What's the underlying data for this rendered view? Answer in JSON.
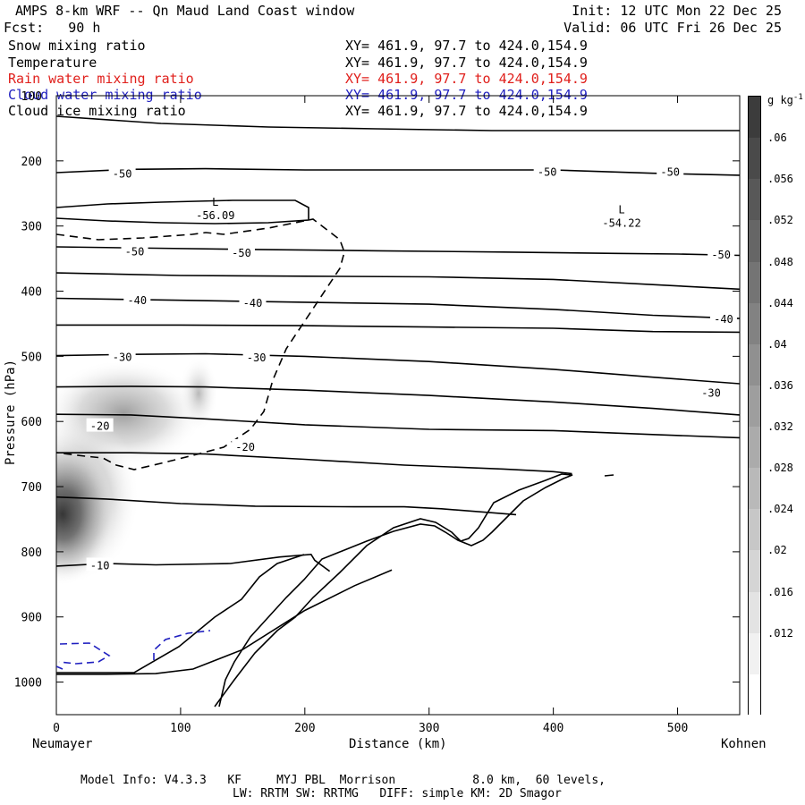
{
  "header": {
    "title": "AMPS 8-km WRF -- Qn Maud Land Coast window",
    "forecast": "Fcst:   90 h",
    "init": "Init: 12 UTC Mon 22 Dec 25",
    "valid": "Valid: 06 UTC Fri 26 Dec 25"
  },
  "legend": [
    {
      "name": "Snow mixing ratio",
      "xy": "XY= 461.9, 97.7 to 424.0,154.9",
      "color": "#000000"
    },
    {
      "name": "Temperature",
      "xy": "XY= 461.9, 97.7 to 424.0,154.9",
      "color": "#000000"
    },
    {
      "name": "Rain water mixing ratio",
      "xy": "XY= 461.9, 97.7 to 424.0,154.9",
      "color": "#e0201c"
    },
    {
      "name": "Cloud water mixing ratio",
      "xy": "XY= 461.9, 97.7 to 424.0,154.9",
      "color": "#2020c0"
    },
    {
      "name": "Cloud ice mixing ratio",
      "xy": "XY= 461.9, 97.7 to 424.0,154.9",
      "color": "#000000"
    }
  ],
  "footer": {
    "line1": "Model Info: V4.3.3   KF     MYJ PBL  Morrison           8.0 km,  60 levels,",
    "line2": "LW: RRTM SW: RRTMG   DIFF: simple KM: 2D Smagor"
  },
  "chart_data": {
    "type": "contour",
    "xlabel": "Distance (km)",
    "ylabel": "Pressure (hPa)",
    "xlim": [
      0,
      550
    ],
    "ylim": [
      1050,
      100
    ],
    "x_ticks": [
      0,
      100,
      200,
      300,
      400,
      500
    ],
    "y_ticks": [
      100,
      200,
      300,
      400,
      500,
      600,
      700,
      800,
      900,
      1000
    ],
    "left_endpoint": "Neumayer",
    "right_endpoint": "Kohnen",
    "colorbar": {
      "unit": "g kg",
      "unit_exp": "-1",
      "levels": [
        ".06",
        ".056",
        ".052",
        ".048",
        ".044",
        ".04",
        ".036",
        ".032",
        ".028",
        ".024",
        ".02",
        ".016",
        ".012"
      ]
    },
    "temperature_contours": [
      {
        "level": -50,
        "points": [
          [
            0,
            218
          ],
          [
            60,
            213
          ],
          [
            120,
            212
          ],
          [
            200,
            214
          ],
          [
            300,
            214
          ],
          [
            400,
            214
          ],
          [
            480,
            219
          ],
          [
            550,
            222
          ]
        ]
      },
      {
        "level": -50,
        "points": [
          [
            0,
            332
          ],
          [
            80,
            334
          ],
          [
            160,
            336
          ],
          [
            260,
            338
          ],
          [
            360,
            340
          ],
          [
            450,
            342
          ],
          [
            500,
            343
          ],
          [
            550,
            345
          ]
        ]
      },
      {
        "level": -40,
        "points": [
          [
            0,
            372
          ],
          [
            100,
            376
          ],
          [
            200,
            377
          ],
          [
            300,
            378
          ],
          [
            400,
            382
          ],
          [
            480,
            390
          ],
          [
            550,
            397
          ]
        ]
      },
      {
        "level": -40,
        "points": [
          [
            0,
            411
          ],
          [
            100,
            414
          ],
          [
            200,
            417
          ],
          [
            300,
            420
          ],
          [
            400,
            428
          ],
          [
            480,
            437
          ],
          [
            550,
            442
          ]
        ]
      },
      {
        "level": -40,
        "points": [
          [
            0,
            452
          ],
          [
            100,
            452
          ],
          [
            200,
            453
          ],
          [
            300,
            455
          ],
          [
            400,
            457
          ],
          [
            480,
            462
          ],
          [
            550,
            463
          ]
        ]
      },
      {
        "level": -30,
        "points": [
          [
            0,
            499
          ],
          [
            60,
            497
          ],
          [
            120,
            496
          ],
          [
            200,
            500
          ],
          [
            300,
            508
          ],
          [
            400,
            520
          ],
          [
            480,
            532
          ],
          [
            550,
            542
          ]
        ]
      },
      {
        "level": -30,
        "points": [
          [
            0,
            547
          ],
          [
            60,
            546
          ],
          [
            120,
            547
          ],
          [
            200,
            552
          ],
          [
            300,
            560
          ],
          [
            400,
            570
          ],
          [
            480,
            580
          ],
          [
            550,
            590
          ]
        ]
      },
      {
        "level": -20,
        "points": [
          [
            0,
            589
          ],
          [
            60,
            590
          ],
          [
            120,
            596
          ],
          [
            200,
            605
          ],
          [
            300,
            612
          ],
          [
            400,
            614
          ],
          [
            480,
            620
          ],
          [
            550,
            625
          ]
        ]
      },
      {
        "level": -20,
        "points": [
          [
            0,
            648
          ],
          [
            60,
            648
          ],
          [
            120,
            650
          ],
          [
            200,
            658
          ],
          [
            280,
            667
          ],
          [
            360,
            673
          ],
          [
            400,
            677
          ],
          [
            415,
            680
          ]
        ]
      },
      {
        "level": -10,
        "points": [
          [
            0,
            716
          ],
          [
            40,
            719
          ],
          [
            100,
            726
          ],
          [
            160,
            730
          ],
          [
            240,
            731
          ],
          [
            280,
            731
          ],
          [
            310,
            734
          ],
          [
            350,
            740
          ],
          [
            370,
            743
          ]
        ]
      },
      {
        "level": -10,
        "points": [
          [
            0,
            822
          ],
          [
            40,
            818
          ],
          [
            80,
            820
          ],
          [
            140,
            818
          ],
          [
            180,
            808
          ],
          [
            205,
            804
          ],
          [
            208,
            813
          ],
          [
            220,
            830
          ]
        ]
      },
      {
        "level": -10,
        "points": [
          [
            0,
            988
          ],
          [
            40,
            988
          ],
          [
            80,
            987
          ],
          [
            110,
            980
          ],
          [
            150,
            950
          ],
          [
            200,
            890
          ],
          [
            240,
            852
          ],
          [
            270,
            828
          ]
        ]
      }
    ],
    "temperature_labels": [
      {
        "value": "-50",
        "x": 53,
        "p": 219
      },
      {
        "value": "-50",
        "x": 395,
        "p": 216
      },
      {
        "value": "-50",
        "x": 494,
        "p": 216
      },
      {
        "value": "-50",
        "x": 63,
        "p": 338
      },
      {
        "value": "-50",
        "x": 149,
        "p": 340
      },
      {
        "value": "-50",
        "x": 535,
        "p": 343
      },
      {
        "value": "-40",
        "x": 65,
        "p": 413
      },
      {
        "value": "-40",
        "x": 158,
        "p": 417
      },
      {
        "value": "-40",
        "x": 537,
        "p": 442
      },
      {
        "value": "-30",
        "x": 53,
        "p": 500
      },
      {
        "value": "-30",
        "x": 161,
        "p": 501
      },
      {
        "value": "-30",
        "x": 527,
        "p": 555
      },
      {
        "value": "-20",
        "x": 35,
        "p": 606
      },
      {
        "value": "-20",
        "x": 152,
        "p": 638
      },
      {
        "value": "-10",
        "x": 35,
        "p": 820
      }
    ],
    "lows": [
      {
        "mark": "L",
        "value": "-56.09",
        "x": 128,
        "p": 285
      },
      {
        "mark": "L",
        "value": "-54.22",
        "x": 455,
        "p": 297
      }
    ]
  }
}
